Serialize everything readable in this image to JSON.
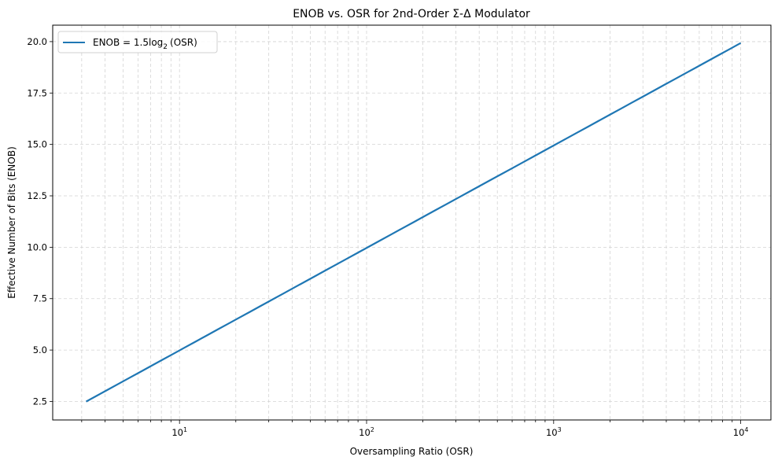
{
  "chart_data": {
    "type": "line",
    "title": "ENOB vs. OSR for 2nd-Order Σ-Δ Modulator",
    "xlabel": "Oversampling Ratio (OSR)",
    "ylabel": "Effective Number of Bits (ENOB)",
    "x_scale": "log",
    "xlim": [
      2.1,
      14500
    ],
    "ylim": [
      1.6,
      20.8
    ],
    "x_ticks": [
      {
        "value": 10,
        "label": "10",
        "exp": "1"
      },
      {
        "value": 100,
        "label": "10",
        "exp": "2"
      },
      {
        "value": 1000,
        "label": "10",
        "exp": "3"
      },
      {
        "value": 10000,
        "label": "10",
        "exp": "4"
      }
    ],
    "y_ticks": [
      2.5,
      5.0,
      7.5,
      10.0,
      12.5,
      15.0,
      17.5,
      20.0
    ],
    "y_tick_labels": [
      "2.5",
      "5.0",
      "7.5",
      "10.0",
      "12.5",
      "15.0",
      "17.5",
      "20.0"
    ],
    "grid": true,
    "grid_style": "dashed",
    "legend_position": "upper left",
    "series": [
      {
        "name": "ENOB = 1.5log2(OSR)",
        "color": "#1f77b4",
        "formula": "1.5*log2(OSR)",
        "x": [
          3.17,
          10,
          100,
          1000,
          10000
        ],
        "values": [
          2.5,
          4.98,
          9.97,
          14.95,
          19.93
        ]
      }
    ]
  },
  "legend": {
    "prefix": "ENOB = 1.5log",
    "subscript": "2",
    "suffix": "(OSR)"
  }
}
